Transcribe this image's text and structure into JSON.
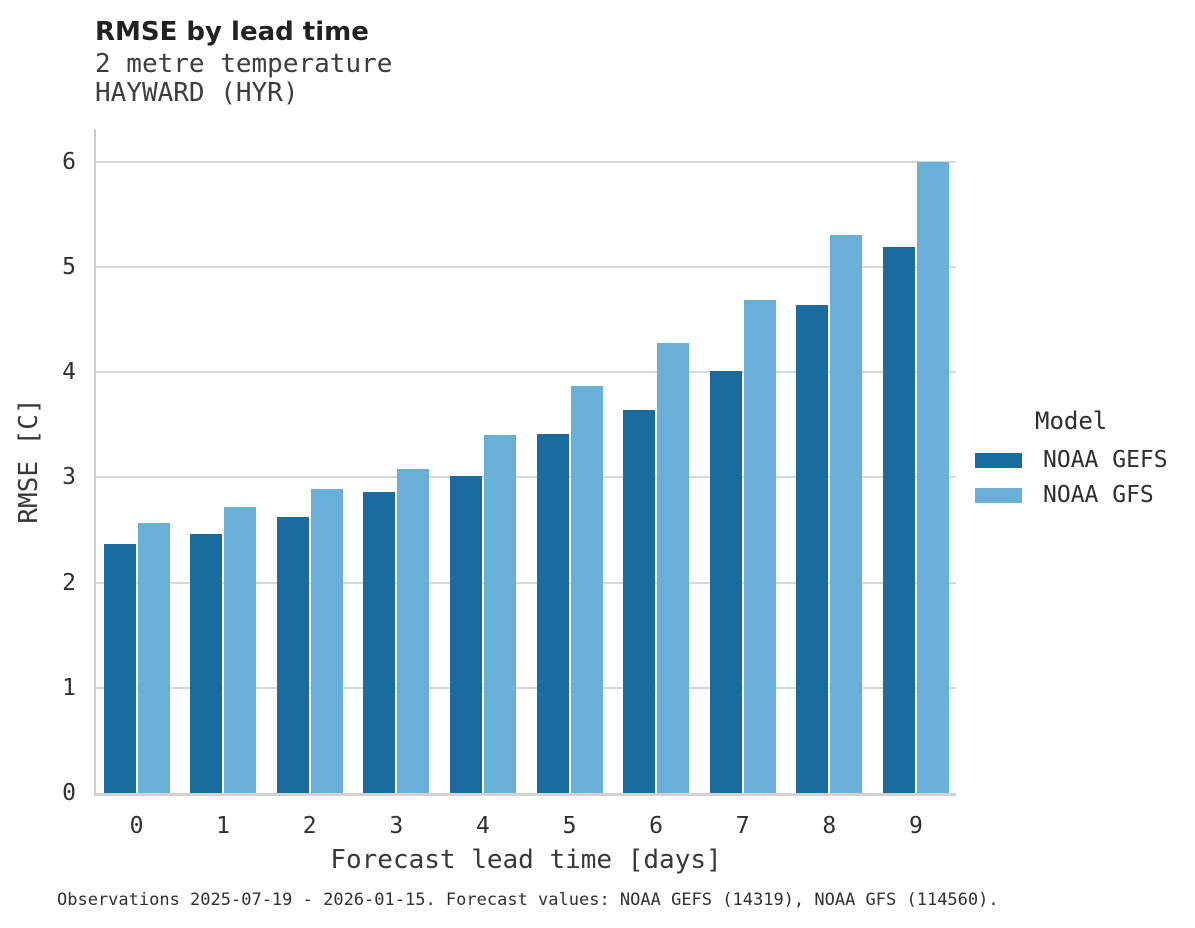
{
  "header": {
    "title": "RMSE by lead time",
    "subtitle_line1": "2 metre temperature",
    "subtitle_line2": "HAYWARD (HYR)"
  },
  "chart_data": {
    "type": "bar",
    "title": "RMSE by lead time",
    "subtitle_lines": [
      "2 metre temperature",
      "HAYWARD (HYR)"
    ],
    "xlabel": "Forecast lead time [days]",
    "ylabel": "RMSE [C]",
    "categories": [
      "0",
      "1",
      "2",
      "3",
      "4",
      "5",
      "6",
      "7",
      "8",
      "9"
    ],
    "series": [
      {
        "name": "NOAA GEFS",
        "color": "#1a6c9e",
        "values": [
          2.37,
          2.46,
          2.62,
          2.86,
          3.01,
          3.41,
          3.64,
          4.01,
          4.64,
          5.19
        ]
      },
      {
        "name": "NOAA GFS",
        "color": "#69afd8",
        "values": [
          2.57,
          2.72,
          2.89,
          3.08,
          3.4,
          3.87,
          4.28,
          4.69,
          5.3,
          6.0
        ]
      }
    ],
    "ylim": [
      0,
      6.31
    ],
    "yticks": [
      0,
      1,
      2,
      3,
      4,
      5,
      6
    ],
    "grid": "horizontal-major",
    "legend_position": "right"
  },
  "legend": {
    "title": "Model",
    "items": [
      {
        "label": "NOAA GEFS",
        "color": "#1a6c9e"
      },
      {
        "label": "NOAA GFS",
        "color": "#69afd8"
      }
    ]
  },
  "caption": "Observations 2025-07-19 - 2026-01-15. Forecast values: NOAA GEFS (14319), NOAA GFS (114560).",
  "colors": {
    "bar_dark": "#1a6c9e",
    "bar_light": "#69afd8",
    "gridline": "#d8d8d8",
    "axis_line": "#cbcbcb",
    "title_text": "#212121",
    "body_text": "#3a3a3a"
  }
}
